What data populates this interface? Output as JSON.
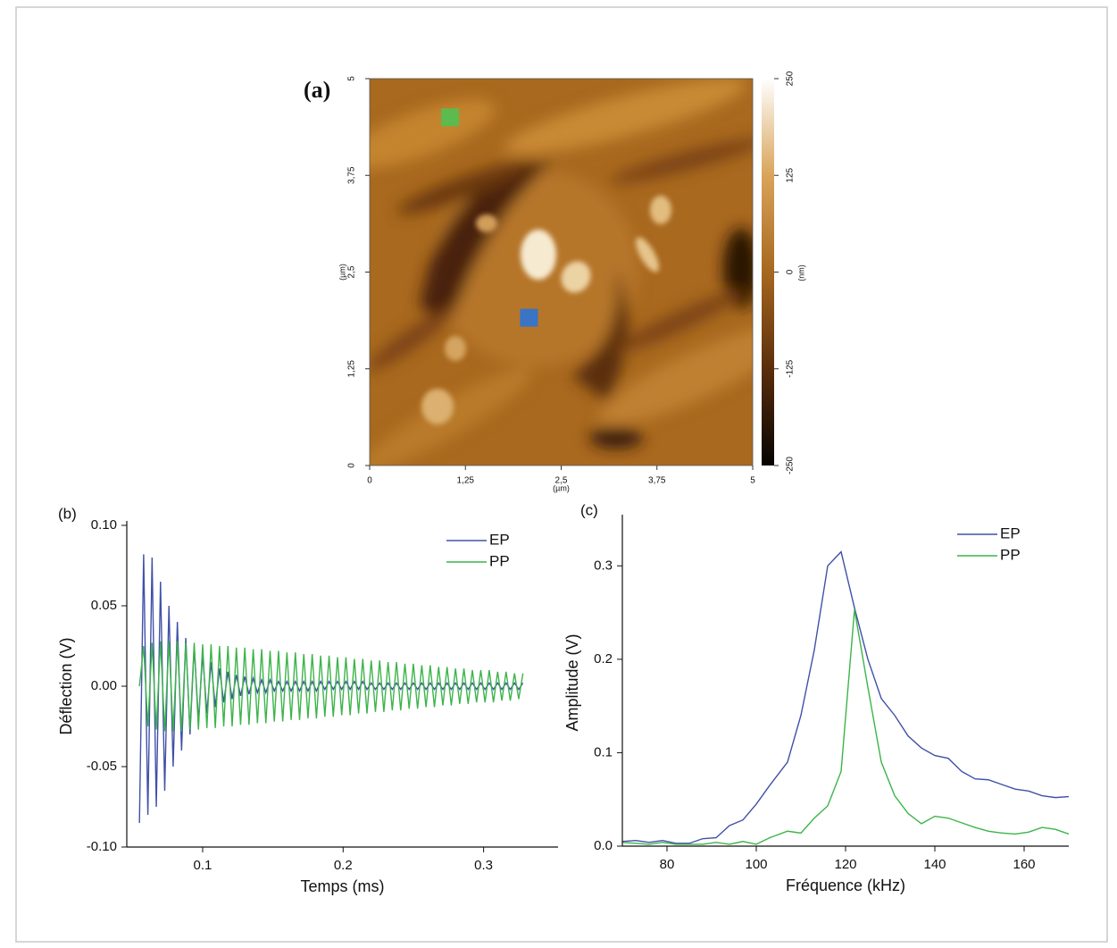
{
  "chart_data": [
    {
      "type": "image",
      "title": "(a)",
      "xticks": [
        {
          "value": 0,
          "label": "0"
        },
        {
          "value": 1.25,
          "label": "1,25"
        },
        {
          "value": 2.5,
          "label": "2,5"
        },
        {
          "value": 3.75,
          "label": "3,75"
        },
        {
          "value": 5,
          "label": "5"
        }
      ],
      "yticks": [
        {
          "value": 0,
          "label": "0"
        },
        {
          "value": 1.25,
          "label": "1,25"
        },
        {
          "value": 2.5,
          "label": "2,5"
        },
        {
          "value": 3.75,
          "label": "3,75"
        },
        {
          "value": 5,
          "label": "5"
        }
      ],
      "xlim": [
        0,
        5
      ],
      "ylim": [
        0,
        5
      ],
      "xlabel": "(µm)",
      "ylabel": "(µm)",
      "clim": [
        -250,
        250
      ],
      "cticks": [
        250,
        125,
        0,
        -125,
        -250
      ],
      "clabel": "(nm)",
      "colormap": [
        "#050302",
        "#5a2e0c",
        "#a7671e",
        "#d9a45a",
        "#ffffff"
      ],
      "markers": [
        {
          "x": 1.05,
          "y": 4.5,
          "color": "#5cba4e"
        },
        {
          "x": 2.08,
          "y": 1.91,
          "color": "#3a74c4"
        }
      ]
    },
    {
      "type": "line",
      "title": "(b)",
      "xlabel": "Temps (ms)",
      "ylabel": "Déflection (V)",
      "xlim": [
        0.046,
        0.353
      ],
      "xticks": [
        0.1,
        0.2,
        0.3
      ],
      "ylim": [
        -0.1,
        0.1
      ],
      "yticks": [
        {
          "value": 0.1,
          "label": "0.10"
        },
        {
          "value": 0.05,
          "label": "0.05"
        },
        {
          "value": 0,
          "label": "0.00"
        },
        {
          "value": -0.05,
          "label": "-0.05"
        },
        {
          "value": -0.1,
          "label": "-0.10"
        }
      ],
      "legend": "upper right",
      "x": [
        0.055,
        0.058,
        0.061,
        0.064,
        0.067,
        0.07,
        0.073,
        0.076,
        0.079,
        0.082,
        0.085,
        0.088,
        0.091,
        0.094,
        0.097,
        0.1,
        0.103,
        0.106,
        0.109,
        0.112,
        0.115,
        0.118,
        0.121,
        0.124,
        0.127,
        0.13,
        0.133,
        0.136,
        0.139,
        0.142,
        0.145,
        0.148,
        0.151,
        0.154,
        0.157,
        0.16,
        0.163,
        0.166,
        0.169,
        0.172,
        0.175,
        0.178,
        0.181,
        0.184,
        0.187,
        0.19,
        0.193,
        0.196,
        0.199,
        0.202,
        0.205,
        0.208,
        0.211,
        0.214,
        0.217,
        0.22,
        0.223,
        0.226,
        0.229,
        0.232,
        0.235,
        0.238,
        0.241,
        0.244,
        0.247,
        0.25,
        0.253,
        0.256,
        0.259,
        0.262,
        0.265,
        0.268,
        0.271,
        0.274,
        0.277,
        0.28,
        0.283,
        0.286,
        0.289,
        0.292,
        0.295,
        0.298,
        0.301,
        0.304,
        0.307,
        0.31,
        0.313,
        0.316,
        0.319,
        0.322,
        0.325,
        0.328
      ],
      "series": [
        {
          "name": "EP",
          "color": "#4050a8",
          "values": [
            -0.085,
            0.082,
            -0.08,
            0.08,
            -0.075,
            0.065,
            -0.065,
            0.05,
            -0.05,
            0.04,
            -0.04,
            0.03,
            -0.03,
            0.025,
            -0.022,
            0.02,
            -0.017,
            0.015,
            -0.013,
            0.011,
            -0.01,
            0.009,
            -0.008,
            0.007,
            -0.006,
            0.006,
            -0.005,
            0.005,
            -0.004,
            0.004,
            -0.004,
            0.004,
            -0.003,
            0.003,
            -0.003,
            0.003,
            -0.003,
            0.003,
            -0.003,
            0.003,
            -0.003,
            0.003,
            -0.003,
            0.003,
            -0.002,
            0.003,
            -0.002,
            0.003,
            -0.002,
            0.003,
            -0.002,
            0.003,
            -0.002,
            0.003,
            -0.002,
            0.002,
            -0.002,
            0.002,
            -0.002,
            0.002,
            -0.002,
            0.002,
            -0.002,
            0.002,
            -0.002,
            0.002,
            -0.002,
            0.002,
            -0.002,
            0.002,
            -0.002,
            0.002,
            -0.002,
            0.002,
            -0.002,
            0.002,
            -0.002,
            0.002,
            -0.002,
            0.002,
            -0.002,
            0.002,
            -0.002,
            0.002,
            -0.002,
            0.002,
            -0.002,
            0.002,
            -0.002,
            0.002,
            -0.002,
            0.002
          ]
        },
        {
          "name": "PP",
          "color": "#3cb44a",
          "values": [
            0,
            0.025,
            -0.025,
            0.027,
            -0.027,
            0.028,
            -0.028,
            0.028,
            -0.028,
            0.028,
            -0.028,
            0.027,
            -0.027,
            0.027,
            -0.027,
            0.026,
            -0.026,
            0.026,
            -0.026,
            0.025,
            -0.025,
            0.025,
            -0.025,
            0.024,
            -0.024,
            0.024,
            -0.024,
            0.023,
            -0.023,
            0.023,
            -0.023,
            0.022,
            -0.022,
            0.022,
            -0.022,
            0.021,
            -0.021,
            0.021,
            -0.021,
            0.02,
            -0.02,
            0.02,
            -0.02,
            0.019,
            -0.019,
            0.019,
            -0.019,
            0.018,
            -0.018,
            0.018,
            -0.018,
            0.017,
            -0.017,
            0.017,
            -0.017,
            0.016,
            -0.016,
            0.016,
            -0.016,
            0.015,
            -0.015,
            0.015,
            -0.015,
            0.014,
            -0.014,
            0.014,
            -0.014,
            0.013,
            -0.013,
            0.013,
            -0.013,
            0.012,
            -0.012,
            0.012,
            -0.012,
            0.011,
            -0.011,
            0.011,
            -0.011,
            0.01,
            -0.01,
            0.01,
            -0.01,
            0.01,
            -0.01,
            0.009,
            -0.009,
            0.009,
            -0.009,
            0.008,
            -0.008,
            0.008
          ]
        }
      ]
    },
    {
      "type": "line",
      "title": "(c)",
      "xlabel": "Fréquence (kHz)",
      "ylabel": "Amplitude (V)",
      "xlim": [
        70,
        170
      ],
      "xticks": [
        80,
        100,
        120,
        140,
        160
      ],
      "ylim": [
        0,
        0.35
      ],
      "yticks": [
        {
          "value": 0,
          "label": "0.0"
        },
        0.1,
        0.2,
        0.3
      ],
      "legend": "upper right",
      "x": [
        70,
        73,
        76,
        79,
        82,
        85,
        88,
        91,
        94,
        97,
        100,
        103,
        107,
        110,
        113,
        116,
        119,
        122,
        125,
        128,
        131,
        134,
        137,
        140,
        143,
        146,
        149,
        152,
        155,
        158,
        161,
        164,
        167,
        170
      ],
      "series": [
        {
          "name": "EP",
          "color": "#4050a8",
          "values": [
            0.005,
            0.006,
            0.004,
            0.006,
            0.003,
            0.003,
            0.008,
            0.009,
            0.022,
            0.028,
            0.045,
            0.065,
            0.09,
            0.14,
            0.21,
            0.3,
            0.315,
            0.255,
            0.2,
            0.158,
            0.14,
            0.118,
            0.105,
            0.097,
            0.094,
            0.08,
            0.072,
            0.071,
            0.066,
            0.061,
            0.059,
            0.054,
            0.052,
            0.053
          ]
        },
        {
          "name": "PP",
          "color": "#3cb44a",
          "values": [
            0.004,
            0.003,
            0.002,
            0.004,
            0.002,
            0.002,
            0.002,
            0.004,
            0.002,
            0.005,
            0.002,
            0.009,
            0.016,
            0.014,
            0.03,
            0.043,
            0.08,
            0.253,
            0.17,
            0.09,
            0.054,
            0.035,
            0.024,
            0.032,
            0.03,
            0.025,
            0.02,
            0.016,
            0.014,
            0.013,
            0.015,
            0.02,
            0.018,
            0.013
          ]
        }
      ]
    }
  ]
}
